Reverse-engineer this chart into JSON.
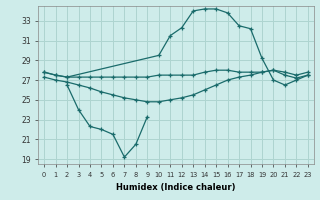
{
  "xlabel": "Humidex (Indice chaleur)",
  "background_color": "#ceecea",
  "grid_color": "#aed4d0",
  "line_color": "#1a6b6b",
  "xlim": [
    -0.5,
    23.5
  ],
  "ylim": [
    18.5,
    34.5
  ],
  "yticks": [
    19,
    21,
    23,
    25,
    27,
    29,
    31,
    33
  ],
  "xticks": [
    0,
    1,
    2,
    3,
    4,
    5,
    6,
    7,
    8,
    9,
    10,
    11,
    12,
    13,
    14,
    15,
    16,
    17,
    18,
    19,
    20,
    21,
    22,
    23
  ],
  "line1_x": [
    0,
    1,
    2,
    10,
    11,
    12,
    13,
    14,
    15,
    16,
    17,
    18,
    19,
    20,
    21,
    22,
    23
  ],
  "line1_y": [
    27.8,
    27.5,
    27.3,
    29.5,
    31.5,
    32.3,
    34.0,
    34.2,
    34.2,
    33.8,
    32.5,
    32.2,
    29.2,
    27.0,
    26.5,
    27.0,
    27.5
  ],
  "line2_x": [
    0,
    1,
    2,
    3,
    4,
    5,
    6,
    7,
    8,
    9,
    10,
    11,
    12,
    13,
    14,
    15,
    16,
    17,
    18,
    19,
    20,
    21,
    22,
    23
  ],
  "line2_y": [
    27.8,
    27.5,
    27.3,
    27.3,
    27.3,
    27.3,
    27.3,
    27.3,
    27.3,
    27.3,
    27.5,
    27.5,
    27.5,
    27.5,
    27.8,
    28.0,
    28.0,
    27.8,
    27.8,
    27.8,
    28.0,
    27.8,
    27.5,
    27.8
  ],
  "line3_x": [
    0,
    1,
    2,
    3,
    4,
    5,
    6,
    7,
    8,
    9,
    10,
    11,
    12,
    13,
    14,
    15,
    16,
    17,
    18,
    19,
    20,
    21,
    22,
    23
  ],
  "line3_y": [
    27.3,
    27.0,
    26.8,
    26.5,
    26.2,
    25.8,
    25.5,
    25.2,
    25.0,
    24.8,
    24.8,
    25.0,
    25.2,
    25.5,
    26.0,
    26.5,
    27.0,
    27.3,
    27.5,
    27.8,
    28.0,
    27.5,
    27.2,
    27.5
  ],
  "line4_x": [
    2,
    3,
    4,
    5,
    6,
    7,
    8,
    9
  ],
  "line4_y": [
    26.5,
    24.0,
    22.3,
    22.0,
    21.5,
    19.2,
    20.5,
    23.3
  ]
}
